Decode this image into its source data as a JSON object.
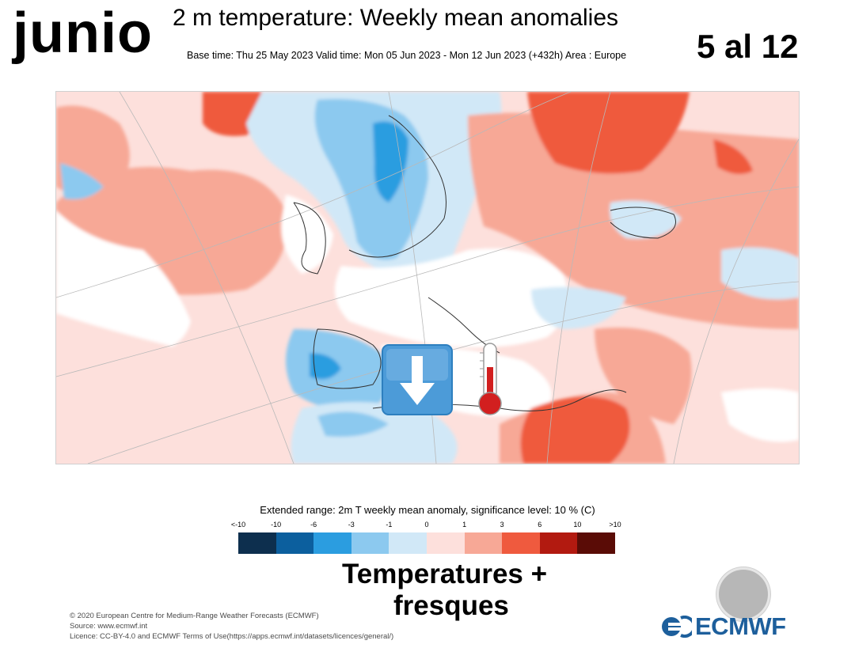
{
  "header": {
    "month": "junio",
    "title": "2 m temperature: Weekly mean anomalies",
    "subtitle": "Base time: Thu 25 May 2023 Valid time: Mon 05 Jun 2023 - Mon 12 Jun 2023 (+432h) Area : Europe",
    "date_range": "5 al 12"
  },
  "map": {
    "region": "Europe",
    "icons": [
      "down-arrow-icon",
      "thermometer-icon"
    ]
  },
  "legend": {
    "title": "Extended range: 2m T weekly mean anomaly, significance level: 10 % (C)",
    "ticks": [
      "<-10",
      "-10",
      "-6",
      "-3",
      "-1",
      "0",
      "1",
      "3",
      "6",
      "10",
      ">10"
    ],
    "colors": [
      "#0d2f4e",
      "#0c5f9e",
      "#2b9de0",
      "#8cc9ef",
      "#d1e8f7",
      "#fde0dc",
      "#f7a896",
      "#ef5a3e",
      "#b21a10",
      "#5a0c06"
    ]
  },
  "overlay": {
    "line1": "Temperatures  +",
    "line2": "fresques"
  },
  "footer": {
    "line1": "© 2020 European Centre for Medium-Range Weather Forecasts (ECMWF)",
    "line2": "Source: www.ecmwf.int",
    "line3": "Licence: CC-BY-4.0 and ECMWF Terms of Use(https://apps.ecmwf.int/datasets/licences/general/)"
  },
  "logo": {
    "text": "ECMWF",
    "color": "#1d5f9c"
  }
}
